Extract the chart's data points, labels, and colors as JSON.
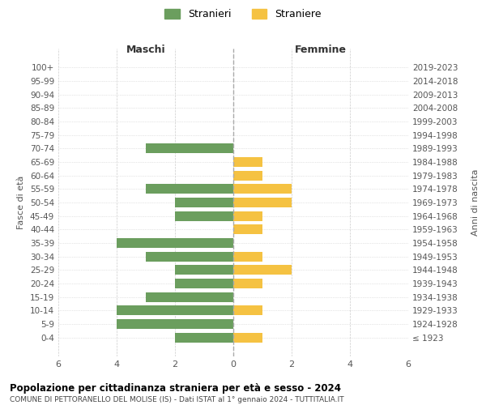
{
  "age_groups": [
    "100+",
    "95-99",
    "90-94",
    "85-89",
    "80-84",
    "75-79",
    "70-74",
    "65-69",
    "60-64",
    "55-59",
    "50-54",
    "45-49",
    "40-44",
    "35-39",
    "30-34",
    "25-29",
    "20-24",
    "15-19",
    "10-14",
    "5-9",
    "0-4"
  ],
  "birth_years": [
    "≤ 1923",
    "1924-1928",
    "1929-1933",
    "1934-1938",
    "1939-1943",
    "1944-1948",
    "1949-1953",
    "1954-1958",
    "1959-1963",
    "1964-1968",
    "1969-1973",
    "1974-1978",
    "1979-1983",
    "1984-1988",
    "1989-1993",
    "1994-1998",
    "1999-2003",
    "2004-2008",
    "2009-2013",
    "2014-2018",
    "2019-2023"
  ],
  "males": [
    0,
    0,
    0,
    0,
    0,
    0,
    3,
    0,
    0,
    3,
    2,
    2,
    0,
    4,
    3,
    2,
    2,
    3,
    4,
    4,
    2
  ],
  "females": [
    0,
    0,
    0,
    0,
    0,
    0,
    0,
    1,
    1,
    2,
    2,
    1,
    1,
    0,
    1,
    2,
    1,
    0,
    1,
    0,
    1
  ],
  "male_color": "#6b9e5e",
  "female_color": "#f5c242",
  "male_label": "Stranieri",
  "female_label": "Straniere",
  "title": "Popolazione per cittadinanza straniera per età e sesso - 2024",
  "subtitle": "COMUNE DI PETTORANELLO DEL MOLISE (IS) - Dati ISTAT al 1° gennaio 2024 - TUTTITALIA.IT",
  "xlabel_left": "Maschi",
  "xlabel_right": "Femmine",
  "ylabel_left": "Fasce di età",
  "ylabel_right": "Anni di nascita",
  "xlim": 6,
  "background_color": "#ffffff",
  "grid_color": "#cccccc",
  "dashed_line_color": "#aaaaaa"
}
